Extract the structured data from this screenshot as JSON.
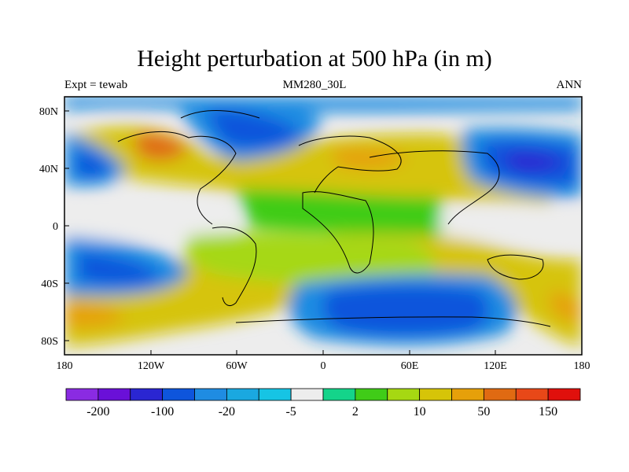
{
  "title": "Height perturbation at 500 hPa (in m)",
  "left_label": "Expt = tewab",
  "center_label": "MM280_30L",
  "right_label": "ANN",
  "y_ticks": [
    "80N",
    "40N",
    "0",
    "40S",
    "80S"
  ],
  "x_ticks": [
    "180",
    "120W",
    "60W",
    "0",
    "60E",
    "120E",
    "180"
  ],
  "colorbar": {
    "colors": [
      "#8a2be2",
      "#6a10d8",
      "#2a26d2",
      "#0e55dc",
      "#1f8ce2",
      "#1aa8e0",
      "#16c4e4",
      "#ededed",
      "#14d48a",
      "#40cc18",
      "#a6d812",
      "#d6c408",
      "#e6a00a",
      "#e06a12",
      "#e84818",
      "#e0100c"
    ],
    "labels": [
      "-200",
      "-100",
      "-20",
      "-5",
      "2",
      "10",
      "50",
      "150"
    ]
  }
}
